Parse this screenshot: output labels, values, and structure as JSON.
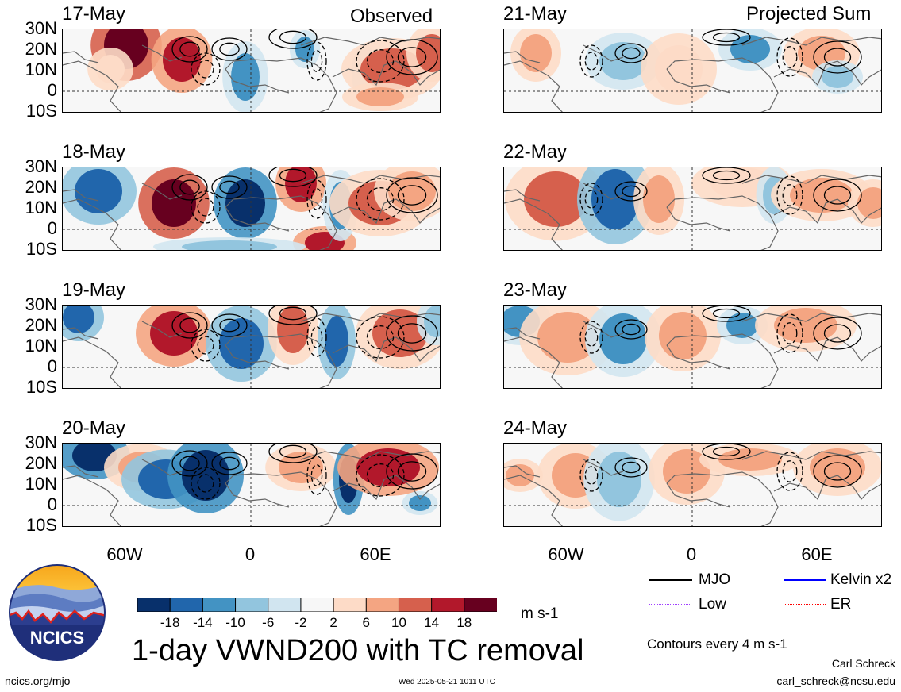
{
  "header": {
    "left_title": "Observed",
    "right_title": "Projected Sum"
  },
  "panels_left": [
    {
      "date": "17-May"
    },
    {
      "date": "18-May"
    },
    {
      "date": "19-May"
    },
    {
      "date": "20-May"
    }
  ],
  "panels_right": [
    {
      "date": "21-May"
    },
    {
      "date": "22-May"
    },
    {
      "date": "23-May"
    },
    {
      "date": "24-May"
    }
  ],
  "lat_labels": [
    "30N",
    "20N",
    "10N",
    "0",
    "10S"
  ],
  "lon_labels": [
    "60W",
    "0",
    "60E"
  ],
  "colorbar": {
    "labels": [
      "-18",
      "-14",
      "-10",
      "-6",
      "-2",
      "2",
      "6",
      "10",
      "14",
      "18"
    ],
    "colors": [
      "#08306b",
      "#2166ac",
      "#4393c3",
      "#92c5de",
      "#d1e5f0",
      "#f7f7f7",
      "#fddbc7",
      "#f4a582",
      "#d6604d",
      "#b2182b",
      "#67001f"
    ],
    "units": "m s-1"
  },
  "legend": {
    "items": [
      {
        "label": "MJO",
        "color": "#000000"
      },
      {
        "label": "Kelvin x2",
        "color": "#0000ff"
      },
      {
        "label": "Low",
        "color": "#a040ff"
      },
      {
        "label": "ER",
        "color": "#ff0000"
      }
    ],
    "note": "Contours every 4 m s-1"
  },
  "main_title": "1-day VWND200 with TC removal",
  "logo_text": "NCICS",
  "footer": {
    "url": "ncics.org/mjo",
    "timestamp": "Wed 2025-05-21 1011 UTC",
    "author": "Carl Schreck",
    "email": "carl_schreck@ncsu.edu"
  }
}
